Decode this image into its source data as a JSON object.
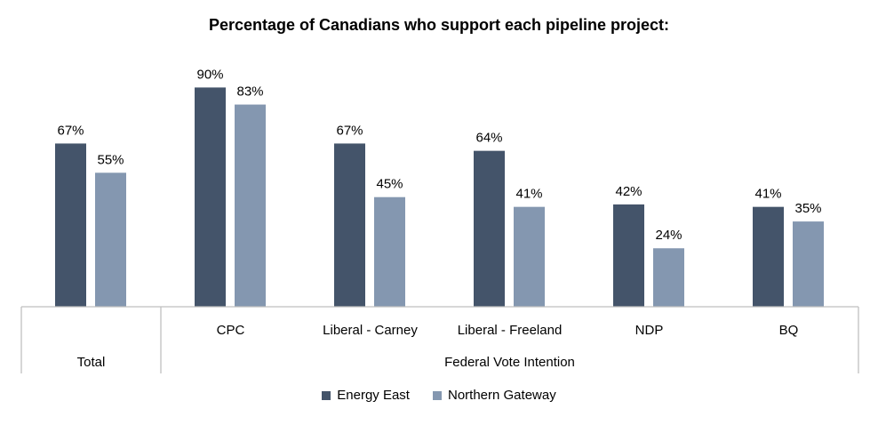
{
  "chart_data": {
    "type": "bar",
    "title": "Percentage of Canadians who support each pipeline project:",
    "categories": [
      "Total",
      "CPC",
      "Liberal - Carney",
      "Liberal - Freeland",
      "NDP",
      "BQ"
    ],
    "group_labels": [
      {
        "label": "Total",
        "span": [
          0,
          0
        ]
      },
      {
        "label": "Federal Vote Intention",
        "span": [
          1,
          5
        ]
      }
    ],
    "series": [
      {
        "name": "Energy East",
        "values": [
          67,
          90,
          67,
          64,
          42,
          41
        ],
        "color": "#44546a"
      },
      {
        "name": "Northern Gateway",
        "values": [
          55,
          83,
          45,
          41,
          24,
          35
        ],
        "color": "#8497b0"
      }
    ],
    "value_suffix": "%",
    "ylim": [
      0,
      100
    ],
    "legend_position": "bottom",
    "grid": false
  }
}
